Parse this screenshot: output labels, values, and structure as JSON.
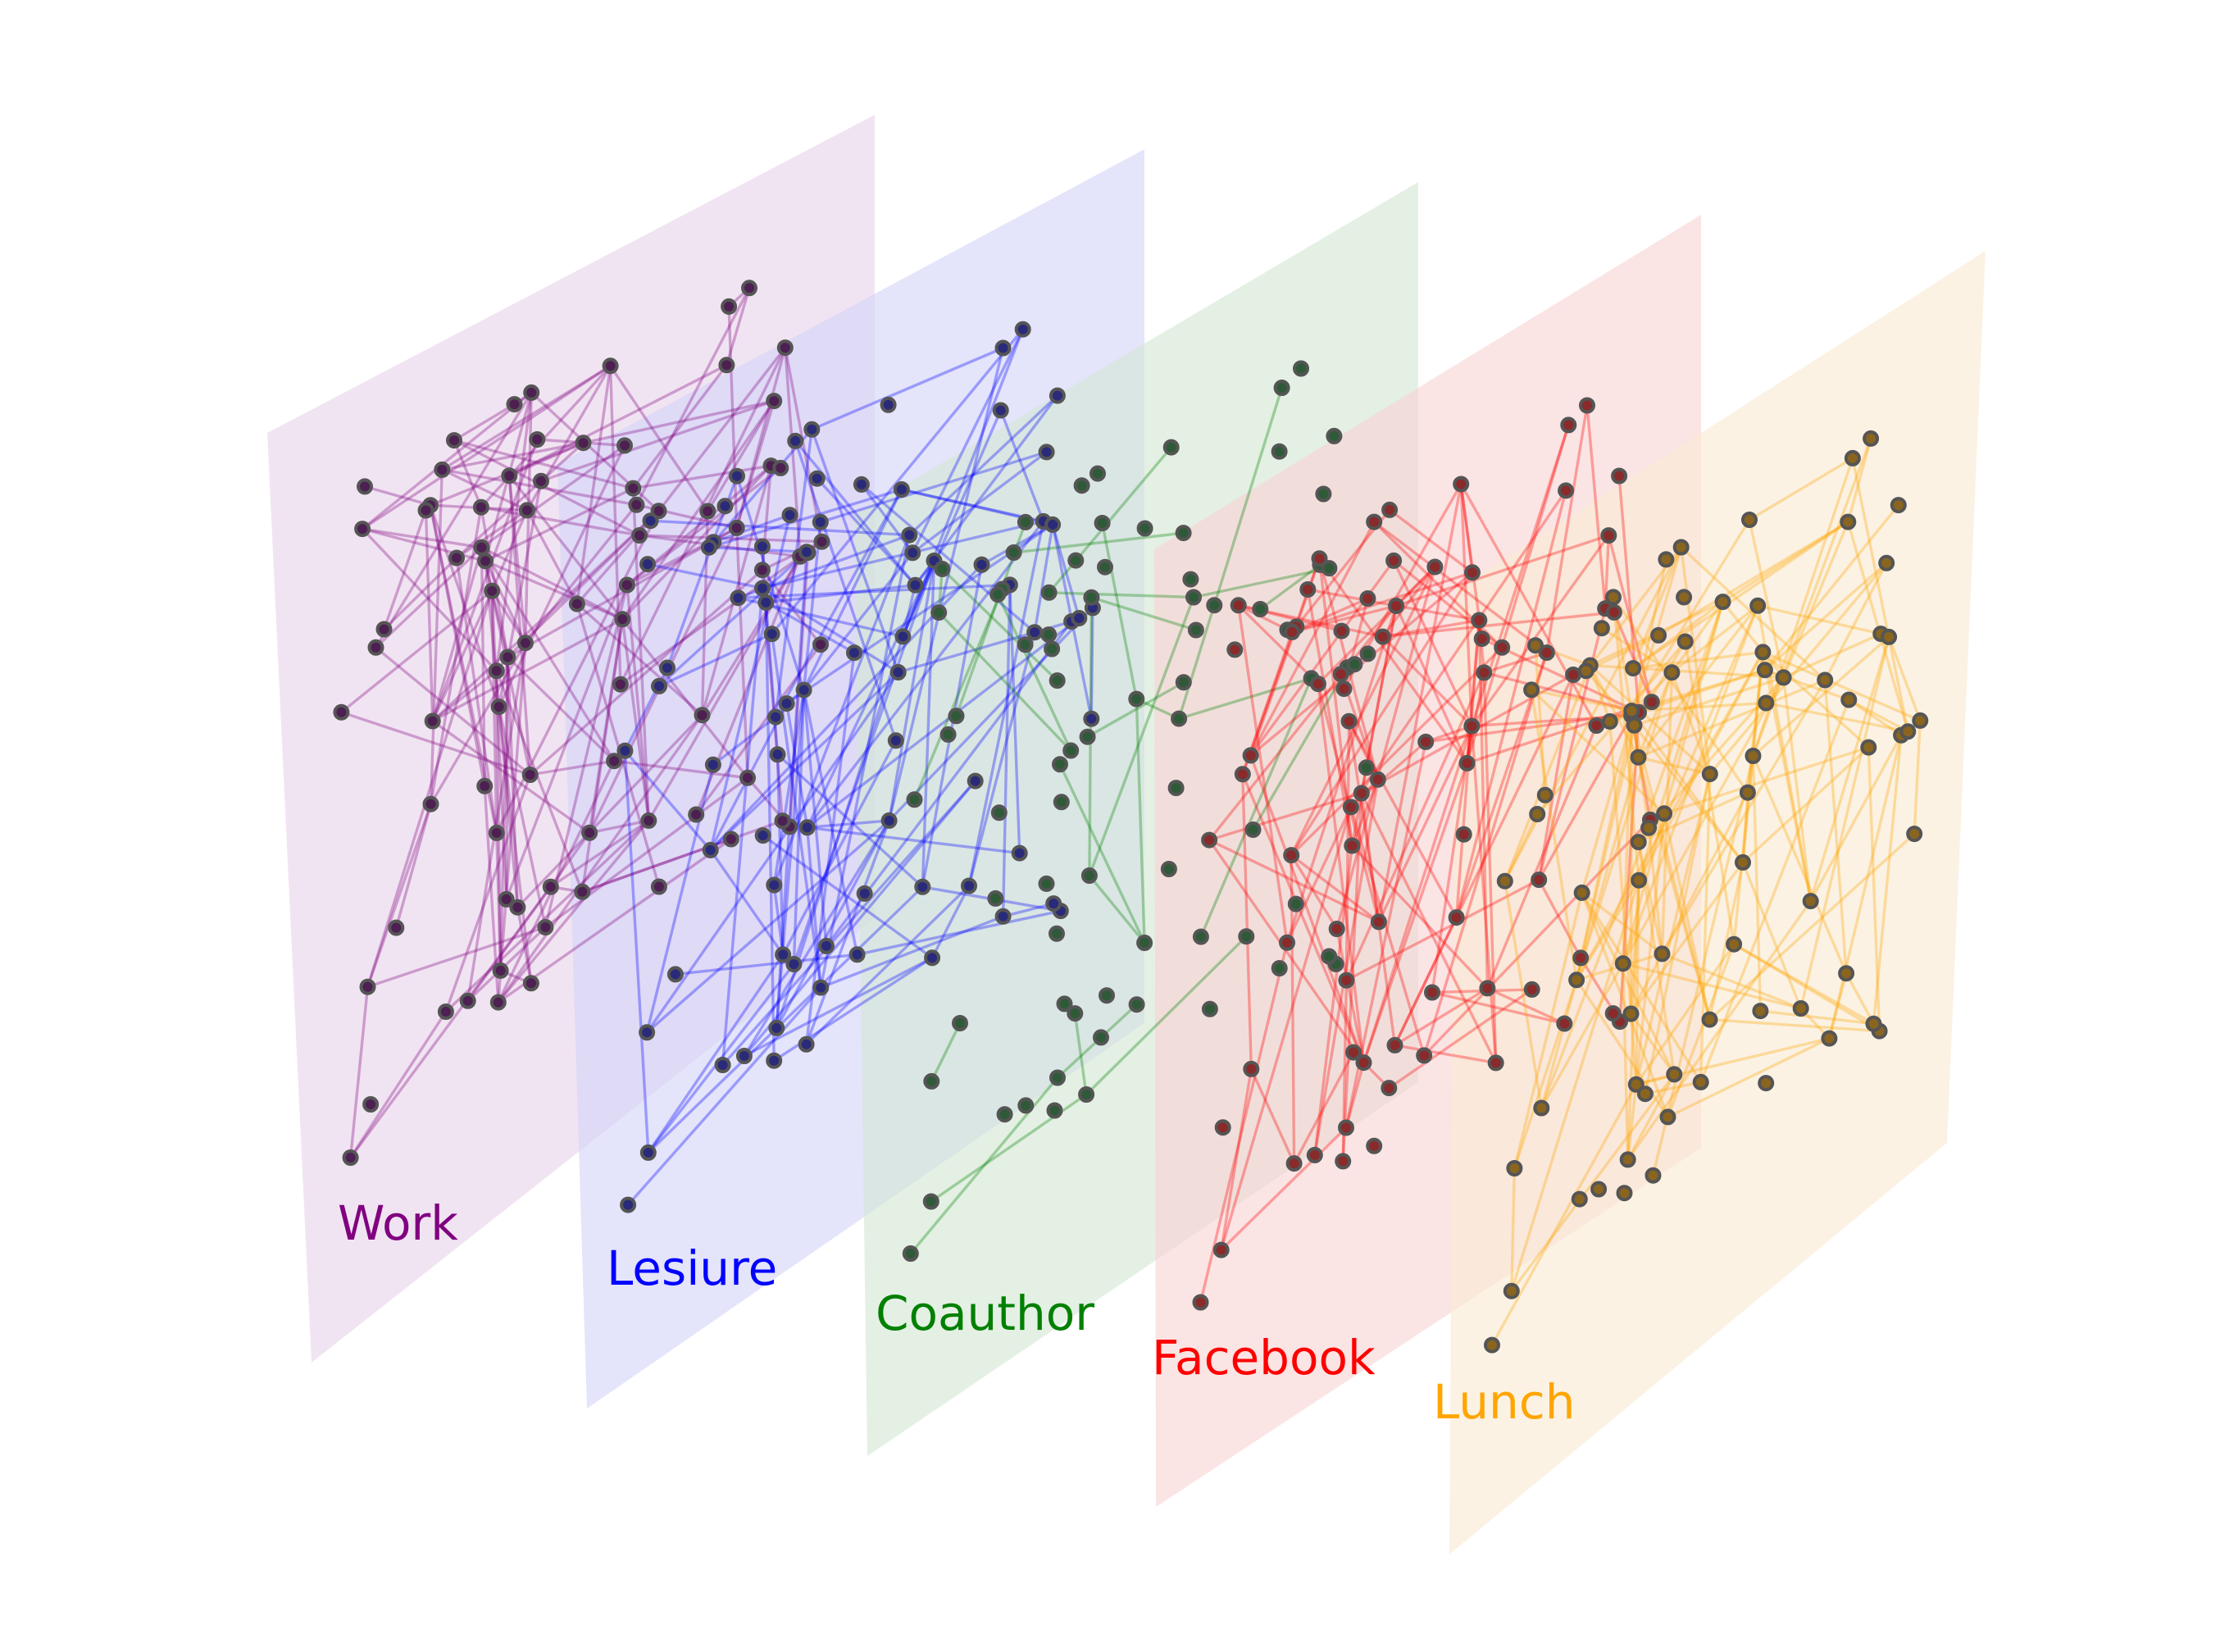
{
  "diagram": {
    "layers": [
      {
        "label": "Work",
        "color": "#800080",
        "node_fill": "#4d1f52",
        "nodes": 78
      },
      {
        "label": "Lesiure",
        "color": "#0000ff",
        "node_fill": "#2a2a7a",
        "nodes": 78
      },
      {
        "label": "Coauthor",
        "color": "#008000",
        "node_fill": "#2f5a38",
        "nodes": 78
      },
      {
        "label": "Facebook",
        "color": "#ff0000",
        "node_fill": "#8a2a2a",
        "nodes": 78
      },
      {
        "label": "Lunch",
        "color": "#ffa500",
        "node_fill": "#8a6520",
        "nodes": 78
      }
    ],
    "node_outline": "#555555"
  }
}
